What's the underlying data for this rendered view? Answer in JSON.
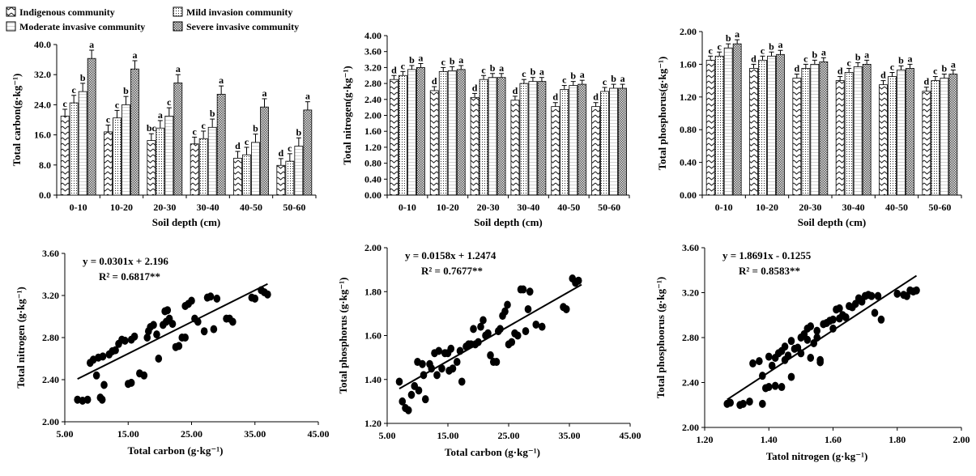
{
  "legend": {
    "entries": [
      "Indigenous community",
      "Mild invasion community",
      "Moderate invasive community",
      "Severe invasive community"
    ]
  },
  "chart_data": [
    {
      "id": "tc",
      "type": "bar",
      "categories": [
        "0-10",
        "10-20",
        "20-30",
        "30-40",
        "40-50",
        "50-60"
      ],
      "xlabel": "Soil depth (cm)",
      "ylabel": "Total carbon(g·kg⁻¹)",
      "ylim": [
        0,
        40
      ],
      "yticks": [
        "0.0",
        "8.0",
        "16.0",
        "24.0",
        "32.0",
        "40.0"
      ],
      "series": [
        {
          "name": "Indigenous community",
          "values": [
            21.0,
            16.8,
            14.5,
            13.6,
            9.8,
            7.9
          ],
          "errors": [
            1.8,
            1.8,
            1.8,
            1.8,
            1.8,
            1.8
          ],
          "letters": [
            "c",
            "c",
            "bc",
            "c",
            "d",
            "d"
          ]
        },
        {
          "name": "Mild invasion community",
          "values": [
            24.5,
            20.5,
            17.8,
            15.0,
            10.7,
            9.0
          ],
          "errors": [
            2.0,
            2.0,
            2.0,
            2.0,
            2.0,
            2.0
          ],
          "letters": [
            "c",
            "c",
            "a",
            "c",
            "c",
            "c"
          ]
        },
        {
          "name": "Moderate invasive community",
          "values": [
            27.5,
            24.0,
            21.0,
            18.0,
            14.0,
            13.0
          ],
          "errors": [
            2.2,
            2.2,
            2.2,
            2.2,
            2.2,
            2.2
          ],
          "letters": [
            "b",
            "b",
            "c",
            "b",
            "b",
            "b"
          ]
        },
        {
          "name": "Severe invasive community",
          "values": [
            36.3,
            33.5,
            29.8,
            26.8,
            23.4,
            22.6
          ],
          "errors": [
            2.2,
            2.2,
            2.2,
            2.2,
            2.2,
            2.2
          ],
          "letters": [
            "a",
            "a",
            "a",
            "a",
            "a",
            "a"
          ]
        }
      ]
    },
    {
      "id": "tn",
      "type": "bar",
      "categories": [
        "0-10",
        "10-20",
        "20-30",
        "30-40",
        "40-50",
        "50-60"
      ],
      "xlabel": "Soil depth (cm)",
      "ylabel": "Total nitrogen(g·kg⁻¹)",
      "ylim": [
        0,
        4.0
      ],
      "yticks": [
        "0.00",
        "0.40",
        "0.80",
        "1.20",
        "1.60",
        "2.00",
        "2.40",
        "2.80",
        "3.20",
        "3.60",
        "4.00"
      ],
      "series": [
        {
          "name": "Indigenous community",
          "values": [
            2.9,
            2.62,
            2.45,
            2.38,
            2.22,
            2.22
          ],
          "errors": [
            0.1,
            0.1,
            0.1,
            0.1,
            0.1,
            0.1
          ],
          "letters": [
            "d",
            "d",
            "d",
            "d",
            "d",
            "d"
          ]
        },
        {
          "name": "Mild invasion community",
          "values": [
            3.0,
            3.1,
            2.9,
            2.8,
            2.65,
            2.6
          ],
          "errors": [
            0.1,
            0.1,
            0.1,
            0.1,
            0.1,
            0.1
          ],
          "letters": [
            "c",
            "c",
            "c",
            "c",
            "c",
            "c"
          ]
        },
        {
          "name": "Moderate invasive community",
          "values": [
            3.15,
            3.12,
            2.95,
            2.85,
            2.75,
            2.68
          ],
          "errors": [
            0.1,
            0.1,
            0.1,
            0.1,
            0.1,
            0.1
          ],
          "letters": [
            "b",
            "b",
            "b",
            "b",
            "b",
            "b"
          ]
        },
        {
          "name": "Severe invasive community",
          "values": [
            3.2,
            3.15,
            2.95,
            2.85,
            2.78,
            2.68
          ],
          "errors": [
            0.1,
            0.1,
            0.1,
            0.1,
            0.1,
            0.1
          ],
          "letters": [
            "a",
            "a",
            "a",
            "a",
            "a",
            "a"
          ]
        }
      ]
    },
    {
      "id": "tp",
      "type": "bar",
      "categories": [
        "0-10",
        "10-20",
        "20-30",
        "30-40",
        "40-50",
        "50-60"
      ],
      "xlabel": "Soil depth (cm)",
      "ylabel": "Total phosphorus(g·kg⁻¹)",
      "ylim": [
        0,
        2.0
      ],
      "yticks": [
        "0.00",
        "0.40",
        "0.80",
        "1.20",
        "1.60",
        "2.00"
      ],
      "series": [
        {
          "name": "Indigenous community",
          "values": [
            1.65,
            1.55,
            1.43,
            1.4,
            1.35,
            1.27
          ],
          "errors": [
            0.05,
            0.05,
            0.05,
            0.05,
            0.05,
            0.05
          ],
          "letters": [
            "c",
            "d",
            "d",
            "d",
            "d",
            "d"
          ]
        },
        {
          "name": "Mild invasion community",
          "values": [
            1.7,
            1.65,
            1.55,
            1.5,
            1.45,
            1.4
          ],
          "errors": [
            0.05,
            0.05,
            0.05,
            0.05,
            0.05,
            0.05
          ],
          "letters": [
            "c",
            "c",
            "c",
            "c",
            "c",
            "c"
          ]
        },
        {
          "name": "Moderate invasive community",
          "values": [
            1.8,
            1.7,
            1.6,
            1.57,
            1.53,
            1.43
          ],
          "errors": [
            0.05,
            0.05,
            0.05,
            0.05,
            0.05,
            0.05
          ],
          "letters": [
            "b",
            "b",
            "b",
            "b",
            "b",
            "b"
          ]
        },
        {
          "name": "Severe invasive community",
          "values": [
            1.85,
            1.72,
            1.63,
            1.6,
            1.55,
            1.48
          ],
          "errors": [
            0.05,
            0.05,
            0.05,
            0.05,
            0.05,
            0.05
          ],
          "letters": [
            "a",
            "a",
            "a",
            "a",
            "a",
            "a"
          ]
        }
      ]
    },
    {
      "id": "tn_tc",
      "type": "scatter",
      "xlabel": "Total carbon  (g·kg⁻¹)",
      "ylabel": "Total nitrogen  (g·kg⁻¹)",
      "xlim": [
        5,
        45
      ],
      "ylim": [
        2.0,
        3.6
      ],
      "xticks": [
        "5.00",
        "15.00",
        "25.00",
        "35.00",
        "45.00"
      ],
      "yticks": [
        "2.00",
        "2.40",
        "2.80",
        "3.20",
        "3.60"
      ],
      "equation": "y = 0.0301x + 2.196",
      "r2": "R² = 0.6817**",
      "fit": {
        "slope": 0.0301,
        "intercept": 2.196,
        "x_range": [
          7,
          37
        ]
      },
      "points": [
        [
          7.0,
          2.21
        ],
        [
          7.8,
          2.2
        ],
        [
          8.6,
          2.21
        ],
        [
          9.0,
          2.56
        ],
        [
          9.5,
          2.59
        ],
        [
          10.0,
          2.44
        ],
        [
          10.3,
          2.61
        ],
        [
          10.6,
          2.23
        ],
        [
          10.9,
          2.21
        ],
        [
          11.2,
          2.35
        ],
        [
          11.0,
          2.62
        ],
        [
          12.0,
          2.64
        ],
        [
          12.5,
          2.67
        ],
        [
          13.0,
          2.68
        ],
        [
          13.5,
          2.74
        ],
        [
          14.0,
          2.78
        ],
        [
          14.5,
          2.77
        ],
        [
          15.0,
          2.36
        ],
        [
          15.5,
          2.37
        ],
        [
          15.5,
          2.78
        ],
        [
          16.0,
          2.81
        ],
        [
          16.8,
          2.46
        ],
        [
          17.5,
          2.44
        ],
        [
          18.0,
          2.8
        ],
        [
          18.2,
          2.86
        ],
        [
          18.5,
          2.9
        ],
        [
          19.0,
          2.92
        ],
        [
          19.5,
          2.83
        ],
        [
          19.8,
          2.6
        ],
        [
          20.5,
          2.92
        ],
        [
          20.8,
          3.05
        ],
        [
          21.2,
          3.06
        ],
        [
          21.0,
          2.95
        ],
        [
          21.5,
          2.98
        ],
        [
          22.0,
          2.93
        ],
        [
          22.5,
          2.71
        ],
        [
          23.0,
          2.72
        ],
        [
          23.5,
          2.8
        ],
        [
          24.0,
          2.8
        ],
        [
          24.0,
          3.1
        ],
        [
          24.5,
          3.12
        ],
        [
          25.0,
          3.15
        ],
        [
          25.5,
          2.98
        ],
        [
          26.0,
          2.95
        ],
        [
          27.0,
          2.86
        ],
        [
          27.5,
          3.18
        ],
        [
          28.0,
          3.19
        ],
        [
          28.5,
          2.88
        ],
        [
          29.0,
          3.17
        ],
        [
          30.5,
          2.98
        ],
        [
          31.0,
          2.98
        ],
        [
          31.5,
          2.95
        ],
        [
          34.5,
          3.18
        ],
        [
          35.0,
          3.17
        ],
        [
          36.0,
          3.25
        ],
        [
          36.5,
          3.23
        ],
        [
          37.0,
          3.21
        ]
      ]
    },
    {
      "id": "tp_tc",
      "type": "scatter",
      "xlabel": "Total carbon  (g·kg⁻¹)",
      "ylabel": "Total phosphorus  (g·kg⁻¹)",
      "xlim": [
        5,
        45
      ],
      "ylim": [
        1.2,
        2.0
      ],
      "xticks": [
        "5.00",
        "15.00",
        "25.00",
        "35.00",
        "45.00"
      ],
      "yticks": [
        "1.20",
        "1.40",
        "1.60",
        "1.80",
        "2.00"
      ],
      "equation": "y = 0.0158x + 1.2474",
      "r2": "R² = 0.7677**",
      "fit": {
        "slope": 0.0158,
        "intercept": 1.2474,
        "x_range": [
          7,
          37
        ]
      },
      "points": [
        [
          7.0,
          1.39
        ],
        [
          7.5,
          1.3
        ],
        [
          8.0,
          1.27
        ],
        [
          8.5,
          1.26
        ],
        [
          9.0,
          1.33
        ],
        [
          9.5,
          1.37
        ],
        [
          10.0,
          1.48
        ],
        [
          10.2,
          1.35
        ],
        [
          10.8,
          1.47
        ],
        [
          11.0,
          1.42
        ],
        [
          11.3,
          1.31
        ],
        [
          12.0,
          1.47
        ],
        [
          12.3,
          1.45
        ],
        [
          12.8,
          1.52
        ],
        [
          13.2,
          1.42
        ],
        [
          13.5,
          1.53
        ],
        [
          14.0,
          1.45
        ],
        [
          14.5,
          1.52
        ],
        [
          15.0,
          1.52
        ],
        [
          15.2,
          1.44
        ],
        [
          15.5,
          1.54
        ],
        [
          15.8,
          1.45
        ],
        [
          16.5,
          1.48
        ],
        [
          17.0,
          1.53
        ],
        [
          17.3,
          1.39
        ],
        [
          18.0,
          1.55
        ],
        [
          18.4,
          1.56
        ],
        [
          18.8,
          1.56
        ],
        [
          19.2,
          1.63
        ],
        [
          19.5,
          1.56
        ],
        [
          20.0,
          1.57
        ],
        [
          20.4,
          1.64
        ],
        [
          20.8,
          1.67
        ],
        [
          21.2,
          1.6
        ],
        [
          21.6,
          1.61
        ],
        [
          22.0,
          1.51
        ],
        [
          22.5,
          1.48
        ],
        [
          23.0,
          1.48
        ],
        [
          23.3,
          1.62
        ],
        [
          23.6,
          1.63
        ],
        [
          24.0,
          1.69
        ],
        [
          24.4,
          1.71
        ],
        [
          24.8,
          1.74
        ],
        [
          25.0,
          1.56
        ],
        [
          25.5,
          1.57
        ],
        [
          26.0,
          1.61
        ],
        [
          26.5,
          1.6
        ],
        [
          27.0,
          1.81
        ],
        [
          27.4,
          1.81
        ],
        [
          27.8,
          1.62
        ],
        [
          28.2,
          1.72
        ],
        [
          28.5,
          1.8
        ],
        [
          29.5,
          1.65
        ],
        [
          30.5,
          1.64
        ],
        [
          34.0,
          1.73
        ],
        [
          34.5,
          1.72
        ],
        [
          35.5,
          1.86
        ],
        [
          36.0,
          1.84
        ],
        [
          36.5,
          1.85
        ]
      ]
    },
    {
      "id": "tp_tn",
      "type": "scatter",
      "xlabel": "Tatol nitrogen  (g·kg⁻¹)",
      "ylabel": "Total phosphoorus  (g·kg⁻¹)",
      "xlim": [
        1.2,
        2.0
      ],
      "ylim": [
        2.0,
        3.6
      ],
      "xticks": [
        "1.20",
        "1.40",
        "1.60",
        "1.80",
        "2.00"
      ],
      "yticks": [
        "2.00",
        "2.40",
        "2.80",
        "3.20",
        "3.60"
      ],
      "equation": "y = 1.8691x - 0.1255",
      "r2": "R² = 0.8583**",
      "fit": {
        "slope": 1.8691,
        "intercept": -0.1255,
        "x_range": [
          1.27,
          1.86
        ]
      },
      "points": [
        [
          1.27,
          2.21
        ],
        [
          1.28,
          2.22
        ],
        [
          1.31,
          2.2
        ],
        [
          1.32,
          2.21
        ],
        [
          1.34,
          2.23
        ],
        [
          1.35,
          2.57
        ],
        [
          1.37,
          2.59
        ],
        [
          1.38,
          2.21
        ],
        [
          1.38,
          2.46
        ],
        [
          1.39,
          2.35
        ],
        [
          1.4,
          2.63
        ],
        [
          1.4,
          2.36
        ],
        [
          1.41,
          2.55
        ],
        [
          1.42,
          2.37
        ],
        [
          1.42,
          2.62
        ],
        [
          1.43,
          2.66
        ],
        [
          1.44,
          2.36
        ],
        [
          1.44,
          2.68
        ],
        [
          1.45,
          2.6
        ],
        [
          1.45,
          2.72
        ],
        [
          1.46,
          2.64
        ],
        [
          1.47,
          2.77
        ],
        [
          1.47,
          2.45
        ],
        [
          1.48,
          2.7
        ],
        [
          1.49,
          2.71
        ],
        [
          1.5,
          2.8
        ],
        [
          1.5,
          2.66
        ],
        [
          1.51,
          2.83
        ],
        [
          1.52,
          2.78
        ],
        [
          1.52,
          2.88
        ],
        [
          1.53,
          2.9
        ],
        [
          1.53,
          2.62
        ],
        [
          1.54,
          2.75
        ],
        [
          1.55,
          2.86
        ],
        [
          1.55,
          2.8
        ],
        [
          1.56,
          2.6
        ],
        [
          1.56,
          2.58
        ],
        [
          1.57,
          2.92
        ],
        [
          1.58,
          2.93
        ],
        [
          1.59,
          2.95
        ],
        [
          1.6,
          2.96
        ],
        [
          1.6,
          2.88
        ],
        [
          1.61,
          3.05
        ],
        [
          1.62,
          3.06
        ],
        [
          1.62,
          2.97
        ],
        [
          1.63,
          3.0
        ],
        [
          1.64,
          2.98
        ],
        [
          1.65,
          3.08
        ],
        [
          1.66,
          3.07
        ],
        [
          1.67,
          3.1
        ],
        [
          1.68,
          3.15
        ],
        [
          1.69,
          3.12
        ],
        [
          1.7,
          3.17
        ],
        [
          1.71,
          3.18
        ],
        [
          1.72,
          3.17
        ],
        [
          1.73,
          3.02
        ],
        [
          1.74,
          3.17
        ],
        [
          1.75,
          2.96
        ],
        [
          1.8,
          3.19
        ],
        [
          1.82,
          3.18
        ],
        [
          1.83,
          3.17
        ],
        [
          1.84,
          3.22
        ],
        [
          1.85,
          3.21
        ],
        [
          1.86,
          3.22
        ]
      ]
    }
  ]
}
